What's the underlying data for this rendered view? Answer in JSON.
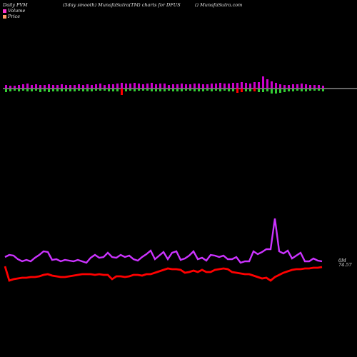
{
  "header": {
    "left": "Daily PVM",
    "center": "(5day smooth) MunafaSutra(TM) charts for DFUS",
    "right": "() MunafaSutra.com"
  },
  "legend": [
    {
      "label": "Volume",
      "color": "#ff33cc"
    },
    {
      "label": "Price",
      "color": "#ff9966"
    }
  ],
  "end_labels": {
    "volume": "0M",
    "price": "74.57"
  },
  "colors": {
    "background": "#000000",
    "baseline": "#cccccc",
    "bar_up": "#cc00cc",
    "bar_down": "#33cc33",
    "bar_neg": "#ff0000",
    "volume_line": "#cc33ff",
    "price_line": "#ff0000"
  },
  "chart_data": [
    {
      "type": "bar",
      "title": "",
      "x": [
        1,
        2,
        3,
        4,
        5,
        6,
        7,
        8,
        9,
        10,
        11,
        12,
        13,
        14,
        15,
        16,
        17,
        18,
        19,
        20,
        21,
        22,
        23,
        24,
        25,
        26,
        27,
        28,
        29,
        30,
        31,
        32,
        33,
        34,
        35,
        36,
        37,
        38,
        39,
        40,
        41,
        42,
        43,
        44,
        45,
        46,
        47,
        48,
        49,
        50,
        51,
        52,
        53,
        54,
        55,
        56,
        57,
        58,
        59,
        60,
        61,
        62,
        63,
        64,
        65,
        66,
        67,
        68,
        69,
        70,
        71,
        72,
        73,
        74,
        75
      ],
      "series": [
        {
          "values": [
            5,
            4,
            4,
            5,
            6,
            7,
            5,
            6,
            5,
            5,
            6,
            5,
            5,
            6,
            5,
            5,
            5,
            6,
            5,
            6,
            5,
            6,
            7,
            5,
            6,
            6,
            7,
            8,
            7,
            7,
            8,
            7,
            6,
            7,
            8,
            6,
            7,
            7,
            5,
            6,
            6,
            7,
            6,
            6,
            7,
            7,
            6,
            6,
            7,
            7,
            8,
            7,
            7,
            8,
            8,
            9,
            8,
            7,
            9,
            9,
            17,
            13,
            10,
            8,
            6,
            5,
            5,
            6,
            6,
            7,
            6,
            5,
            5,
            5,
            4
          ],
          "down": [
            5,
            4,
            3,
            4,
            3,
            4,
            4,
            3,
            5,
            4,
            5,
            4,
            4,
            4,
            4,
            4,
            4,
            3,
            4,
            4,
            4,
            3,
            3,
            3,
            4,
            4,
            4,
            3,
            4,
            3,
            4,
            3,
            3,
            3,
            4,
            4,
            4,
            4,
            3,
            4,
            4,
            4,
            3,
            3,
            4,
            4,
            4,
            3,
            4,
            3,
            4,
            3,
            4,
            4,
            4,
            3,
            4,
            4,
            4,
            5,
            5,
            4,
            7,
            7,
            6,
            5,
            4,
            4,
            3,
            4,
            4,
            3,
            3,
            3,
            4
          ],
          "neg": [
            0,
            0,
            0,
            0,
            0,
            0,
            0,
            0,
            0,
            0,
            0,
            0,
            0,
            0,
            0,
            0,
            0,
            0,
            0,
            0,
            0,
            0,
            0,
            0,
            0,
            0,
            0,
            9,
            0,
            0,
            0,
            0,
            0,
            0,
            0,
            0,
            0,
            0,
            0,
            0,
            0,
            0,
            0,
            0,
            0,
            0,
            0,
            0,
            0,
            0,
            0,
            0,
            0,
            0,
            6,
            5,
            0,
            0,
            4,
            0,
            0,
            0,
            0,
            0,
            0,
            0,
            0,
            0,
            0,
            0,
            0,
            0,
            0,
            0,
            0
          ]
        }
      ]
    },
    {
      "type": "line",
      "title": "",
      "series": [
        {
          "name": "Volume",
          "values": [
            360,
            357,
            358,
            363,
            366,
            364,
            366,
            361,
            357,
            352,
            353,
            364,
            363,
            366,
            364,
            365,
            366,
            364,
            366,
            368,
            361,
            357,
            361,
            360,
            354,
            360,
            361,
            357,
            360,
            358,
            363,
            365,
            360,
            356,
            351,
            363,
            358,
            353,
            363,
            354,
            352,
            364,
            362,
            358,
            352,
            363,
            361,
            365,
            357,
            358,
            360,
            358,
            363,
            363,
            360,
            368,
            366,
            366,
            352,
            356,
            353,
            349,
            349,
            306,
            352,
            355,
            351,
            362,
            358,
            354,
            366,
            366,
            362,
            365,
            366
          ]
        },
        {
          "name": "Price",
          "values": [
            373,
            393,
            391,
            390,
            389,
            389,
            388,
            388,
            387,
            385,
            384,
            386,
            387,
            388,
            388,
            387,
            386,
            385,
            384,
            384,
            384,
            385,
            384,
            385,
            385,
            391,
            387,
            387,
            388,
            387,
            385,
            385,
            386,
            384,
            384,
            382,
            380,
            378,
            376,
            377,
            377,
            378,
            382,
            381,
            379,
            381,
            378,
            381,
            381,
            378,
            377,
            376,
            377,
            381,
            382,
            383,
            384,
            384,
            386,
            388,
            390,
            389,
            393,
            388,
            385,
            382,
            380,
            378,
            377,
            377,
            376,
            376,
            375,
            375,
            374
          ]
        }
      ]
    }
  ]
}
